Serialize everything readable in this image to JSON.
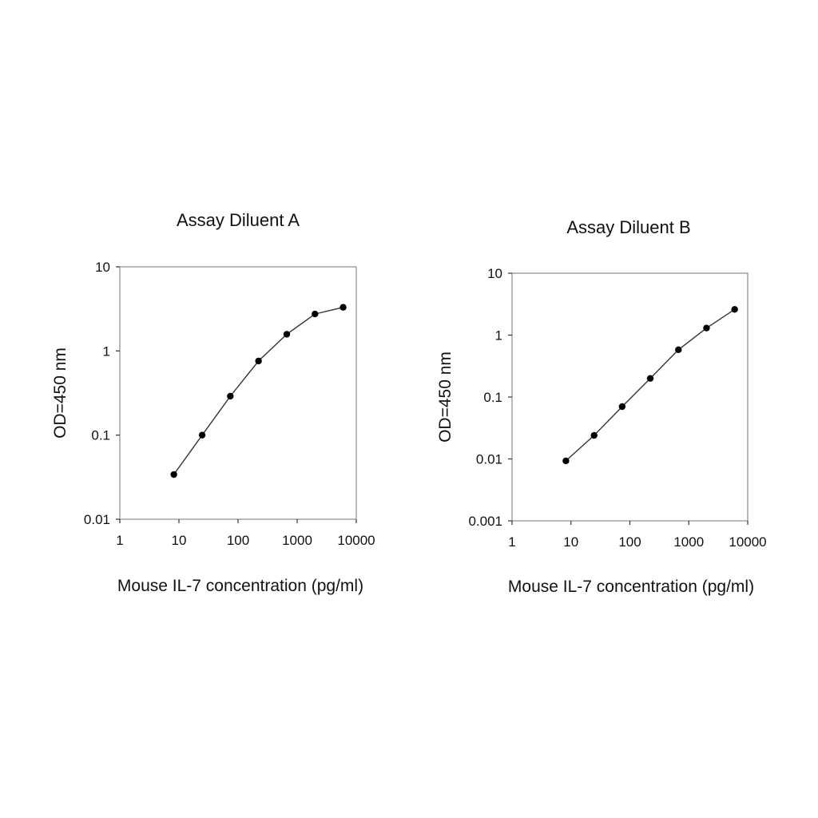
{
  "chart_data": [
    {
      "type": "line",
      "title": "Assay Diluent A",
      "xlabel": "Mouse IL-7 concentration (pg/ml)",
      "ylabel": "OD=450 nm",
      "xscale": "log",
      "yscale": "log",
      "xlim": [
        1,
        10000
      ],
      "ylim": [
        0.01,
        10
      ],
      "xticks": [
        "1",
        "10",
        "100",
        "1000",
        "10000"
      ],
      "yticks": [
        "10",
        "1",
        "0.1",
        "0.01"
      ],
      "grid": false,
      "series": [
        {
          "x": [
            8.2,
            24.7,
            74,
            222,
            667,
            2000,
            6000
          ],
          "y": [
            0.034,
            0.1,
            0.29,
            0.76,
            1.58,
            2.75,
            3.3
          ]
        }
      ]
    },
    {
      "type": "line",
      "title": "Assay Diluent B",
      "xlabel": "Mouse IL-7 concentration (pg/ml)",
      "ylabel": "OD=450 nm",
      "xscale": "log",
      "yscale": "log",
      "xlim": [
        1,
        10000
      ],
      "ylim": [
        0.001,
        10
      ],
      "xticks": [
        "1",
        "10",
        "100",
        "1000",
        "10000"
      ],
      "yticks": [
        "10",
        "1",
        "0.1",
        "0.01",
        "0.001"
      ],
      "grid": false,
      "series": [
        {
          "x": [
            8.2,
            24.7,
            74,
            222,
            667,
            2000,
            6000
          ],
          "y": [
            0.0093,
            0.024,
            0.07,
            0.2,
            0.58,
            1.3,
            2.6
          ]
        }
      ]
    }
  ]
}
